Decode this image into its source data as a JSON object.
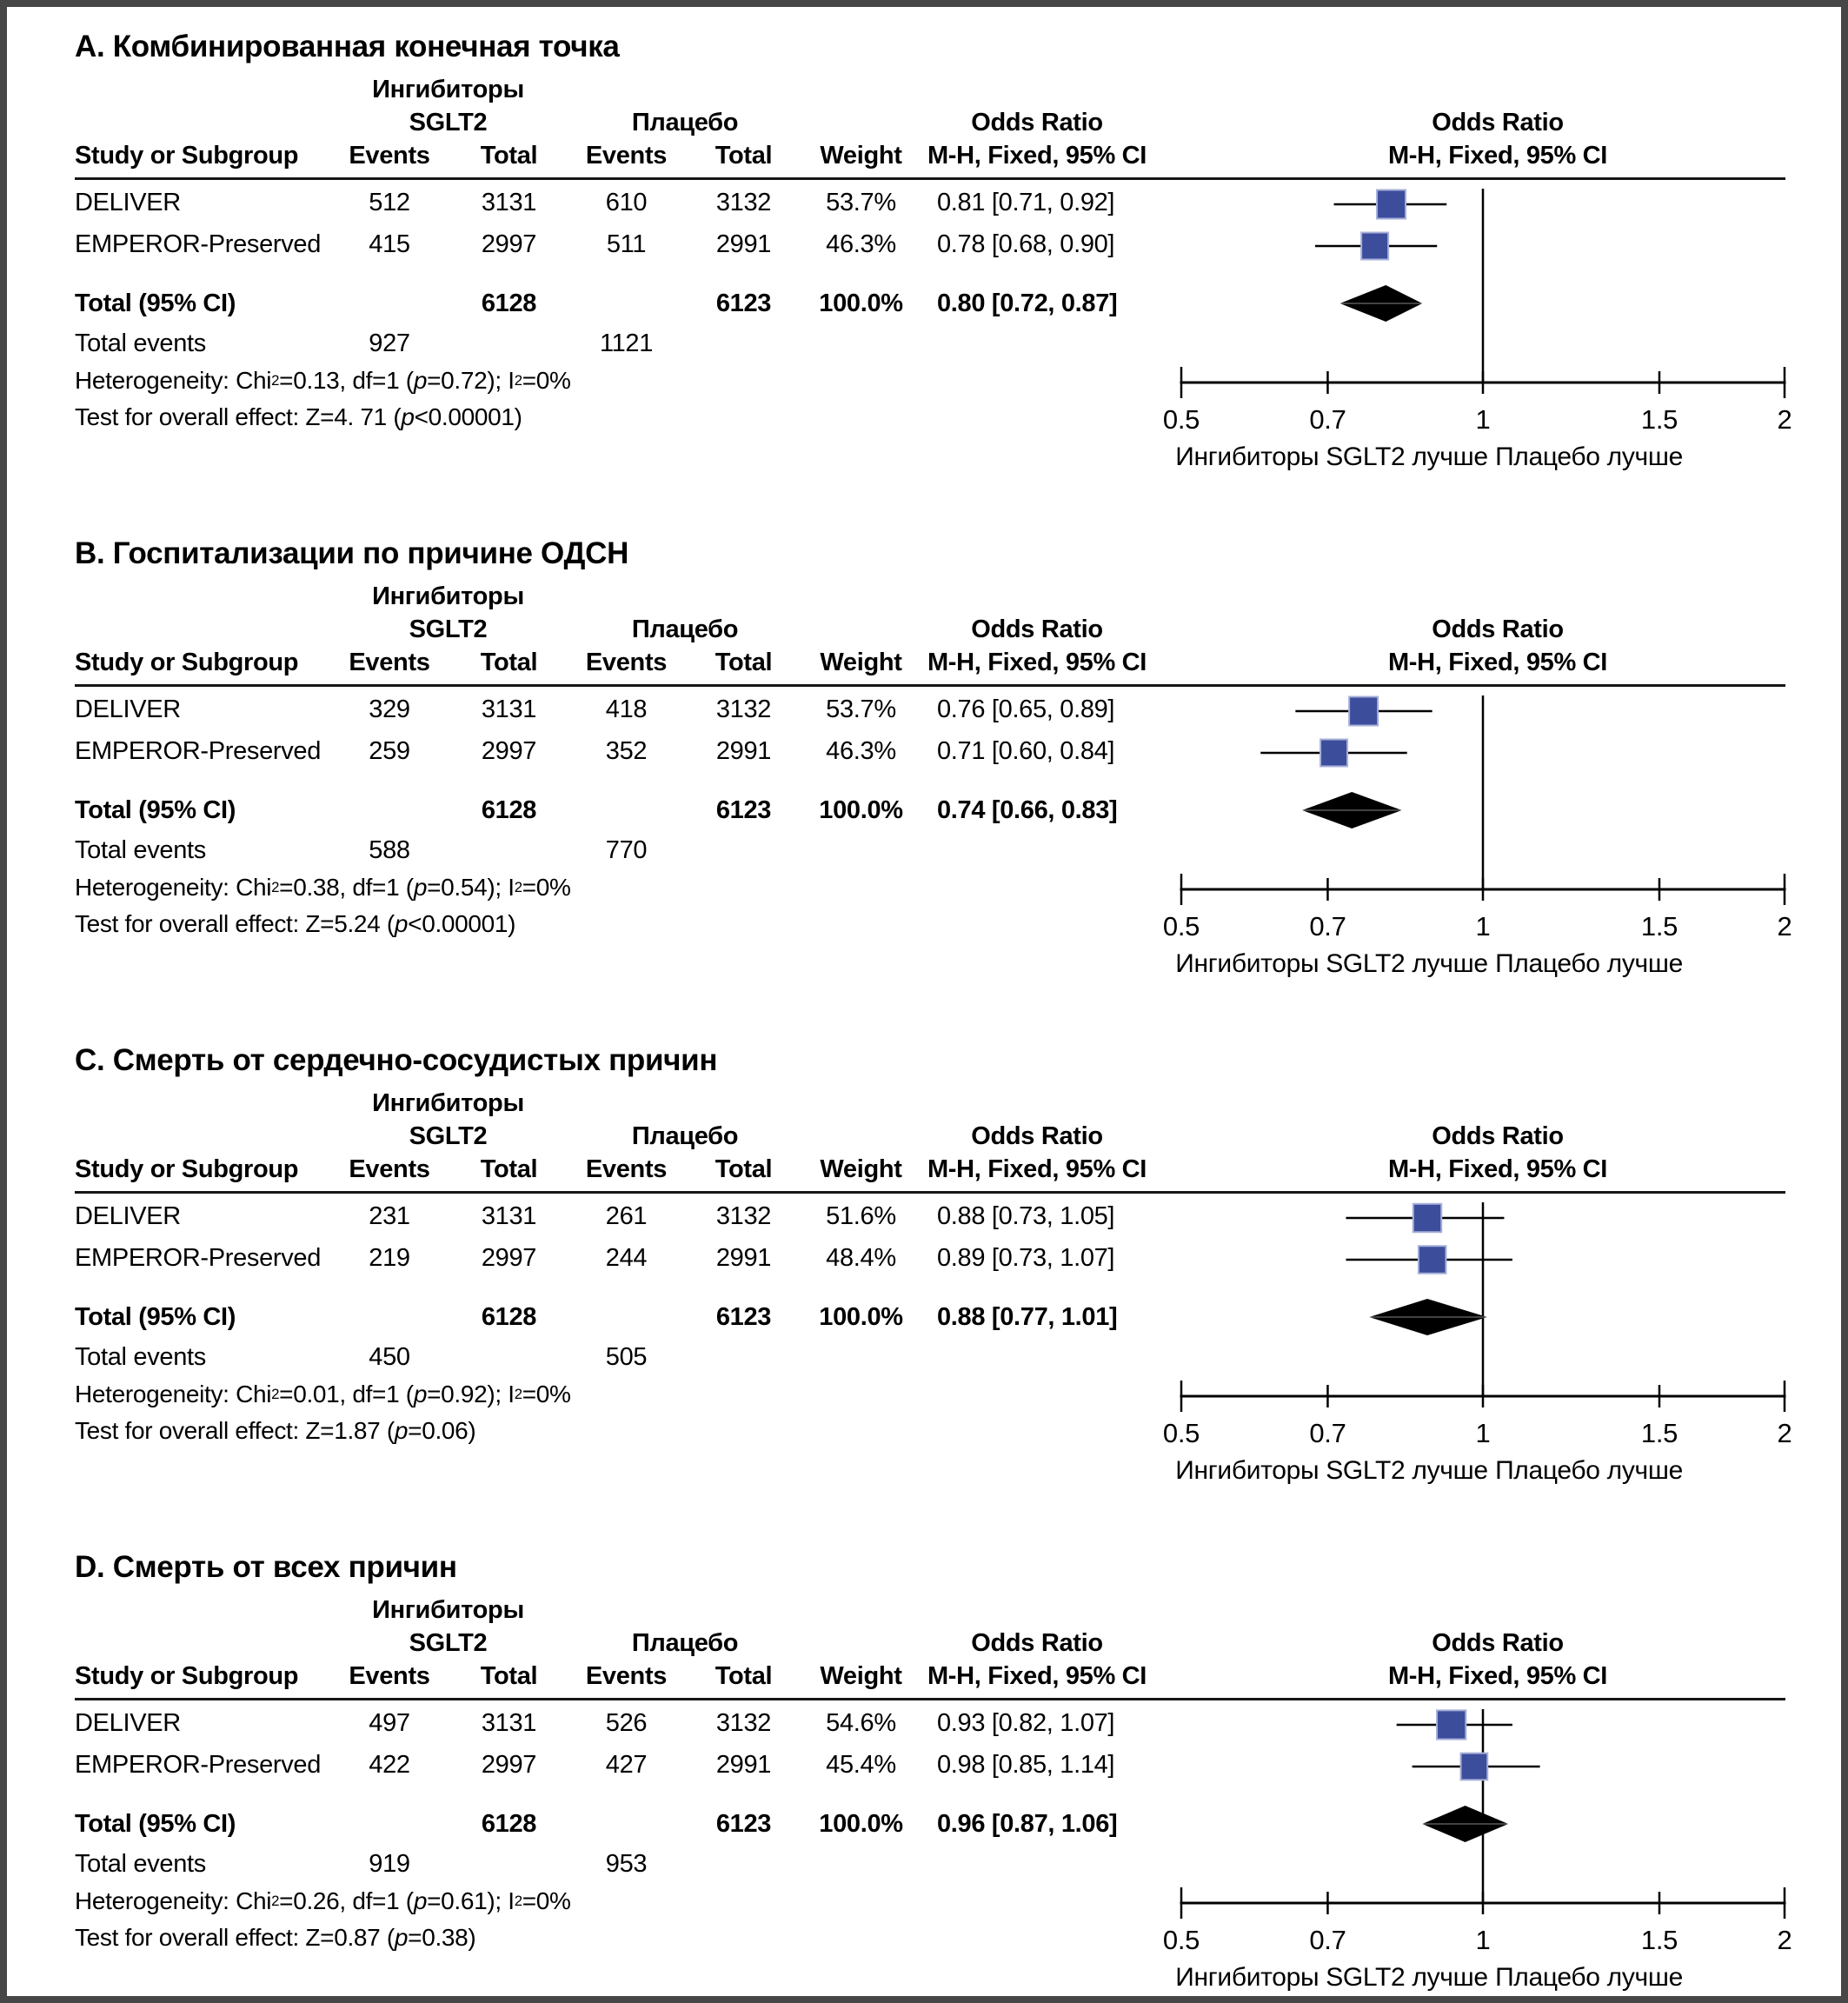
{
  "frame": {
    "border_color": "#474747",
    "background": "#ffffff"
  },
  "chart_data": {
    "type": "forest",
    "x_scale": "log",
    "x_range": [
      0.5,
      2
    ],
    "x_ticks": [
      "0.5",
      "0.7",
      "1",
      "1.5",
      "2"
    ],
    "marker_color": "#3c4d9c",
    "marker_edge_color": "#a7b0d8",
    "diamond_color": "#000000",
    "footer_left": "Ингибиторы SGLT2 лучше",
    "footer_right": "Плацебо лучше",
    "total_label": "Total (95% CI)",
    "total_events_label": "Total events",
    "columns": {
      "study": "Study or Subgroup",
      "group1_line1": "Ингибиторы",
      "group1_line2": "SGLT2",
      "group2": "Плацебо",
      "events": "Events",
      "total": "Total",
      "weight": "Weight",
      "or_title": "Odds Ratio",
      "or_sub": "M-H, Fixed, 95% CI"
    },
    "panels": [
      {
        "title": "А. Комбинированная конечная точка",
        "studies": [
          {
            "name": "DELIVER",
            "e1": "512",
            "t1": "3131",
            "e2": "610",
            "t2": "3132",
            "weight": "53.7%",
            "ci_text": "0.81 [0.71, 0.92]",
            "or": 0.81,
            "lo": 0.71,
            "hi": 0.92,
            "w": 53.7
          },
          {
            "name": "EMPEROR-Preserved",
            "e1": "415",
            "t1": "2997",
            "e2": "511",
            "t2": "2991",
            "weight": "46.3%",
            "ci_text": "0.78 [0.68, 0.90]",
            "or": 0.78,
            "lo": 0.68,
            "hi": 0.9,
            "w": 46.3
          }
        ],
        "total": {
          "t1": "6128",
          "t2": "6123",
          "weight": "100.0%",
          "ci_text": "0.80 [0.72, 0.87]",
          "or": 0.8,
          "lo": 0.72,
          "hi": 0.87
        },
        "total_events": {
          "e1": "927",
          "e2": "1121"
        },
        "heterogeneity_parts": [
          {
            "t": "Heterogeneity: Chi"
          },
          {
            "t": "2",
            "sup": true
          },
          {
            "t": "=0.13, df=1 ("
          },
          {
            "t": "p",
            "i": true
          },
          {
            "t": "=0.72); I"
          },
          {
            "t": "2",
            "sup": true
          },
          {
            "t": "=0%"
          }
        ],
        "test_parts": [
          {
            "t": "Test for overall effect: Z=4. 71 ("
          },
          {
            "t": "p",
            "i": true
          },
          {
            "t": " <0.00001)"
          }
        ]
      },
      {
        "title": "В. Госпитализации по причине ОДСН",
        "studies": [
          {
            "name": "DELIVER",
            "e1": "329",
            "t1": "3131",
            "e2": "418",
            "t2": "3132",
            "weight": "53.7%",
            "ci_text": "0.76 [0.65, 0.89]",
            "or": 0.76,
            "lo": 0.65,
            "hi": 0.89,
            "w": 53.7
          },
          {
            "name": "EMPEROR-Preserved",
            "e1": "259",
            "t1": "2997",
            "e2": "352",
            "t2": "2991",
            "weight": "46.3%",
            "ci_text": "0.71 [0.60, 0.84]",
            "or": 0.71,
            "lo": 0.6,
            "hi": 0.84,
            "w": 46.3
          }
        ],
        "total": {
          "t1": "6128",
          "t2": "6123",
          "weight": "100.0%",
          "ci_text": "0.74 [0.66, 0.83]",
          "or": 0.74,
          "lo": 0.66,
          "hi": 0.83
        },
        "total_events": {
          "e1": "588",
          "e2": "770"
        },
        "heterogeneity_parts": [
          {
            "t": "Heterogeneity: Chi"
          },
          {
            "t": "2",
            "sup": true
          },
          {
            "t": "=0.38, df=1 ("
          },
          {
            "t": "p",
            "i": true
          },
          {
            "t": "=0.54); I"
          },
          {
            "t": "2",
            "sup": true
          },
          {
            "t": "=0%"
          }
        ],
        "test_parts": [
          {
            "t": "Test for overall effect: Z=5.24 ("
          },
          {
            "t": "p",
            "i": true
          },
          {
            "t": " <0.00001)"
          }
        ]
      },
      {
        "title": "С. Смерть от сердечно-сосудистых причин",
        "studies": [
          {
            "name": "DELIVER",
            "e1": "231",
            "t1": "3131",
            "e2": "261",
            "t2": "3132",
            "weight": "51.6%",
            "ci_text": "0.88 [0.73, 1.05]",
            "or": 0.88,
            "lo": 0.73,
            "hi": 1.05,
            "w": 51.6
          },
          {
            "name": "EMPEROR-Preserved",
            "e1": "219",
            "t1": "2997",
            "e2": "244",
            "t2": "2991",
            "weight": "48.4%",
            "ci_text": "0.89 [0.73, 1.07]",
            "or": 0.89,
            "lo": 0.73,
            "hi": 1.07,
            "w": 48.4
          }
        ],
        "total": {
          "t1": "6128",
          "t2": "6123",
          "weight": "100.0%",
          "ci_text": "0.88 [0.77, 1.01]",
          "or": 0.88,
          "lo": 0.77,
          "hi": 1.01
        },
        "total_events": {
          "e1": "450",
          "e2": "505"
        },
        "heterogeneity_parts": [
          {
            "t": "Heterogeneity: Chi"
          },
          {
            "t": "2",
            "sup": true
          },
          {
            "t": "=0.01, df=1 ("
          },
          {
            "t": "p",
            "i": true
          },
          {
            "t": "=0.92); I"
          },
          {
            "t": "2",
            "sup": true
          },
          {
            "t": "=0%"
          }
        ],
        "test_parts": [
          {
            "t": "Test for overall effect: Z=1.87 ("
          },
          {
            "t": "p",
            "i": true
          },
          {
            "t": "=0.06)"
          }
        ]
      },
      {
        "title": "D. Смерть от всех причин",
        "studies": [
          {
            "name": "DELIVER",
            "e1": "497",
            "t1": "3131",
            "e2": "526",
            "t2": "3132",
            "weight": "54.6%",
            "ci_text": "0.93 [0.82, 1.07]",
            "or": 0.93,
            "lo": 0.82,
            "hi": 1.07,
            "w": 54.6
          },
          {
            "name": "EMPEROR-Preserved",
            "e1": "422",
            "t1": "2997",
            "e2": "427",
            "t2": "2991",
            "weight": "45.4%",
            "ci_text": "0.98 [0.85, 1.14]",
            "or": 0.98,
            "lo": 0.85,
            "hi": 1.14,
            "w": 45.4
          }
        ],
        "total": {
          "t1": "6128",
          "t2": "6123",
          "weight": "100.0%",
          "ci_text": "0.96 [0.87, 1.06]",
          "or": 0.96,
          "lo": 0.87,
          "hi": 1.06
        },
        "total_events": {
          "e1": "919",
          "e2": "953"
        },
        "heterogeneity_parts": [
          {
            "t": "Heterogeneity: Chi"
          },
          {
            "t": "2",
            "sup": true
          },
          {
            "t": "=0.26, df=1 ("
          },
          {
            "t": "p",
            "i": true
          },
          {
            "t": "=0.61); I"
          },
          {
            "t": "2",
            "sup": true
          },
          {
            "t": "=0%"
          }
        ],
        "test_parts": [
          {
            "t": "Test for overall effect: Z=0.87 ("
          },
          {
            "t": "p",
            "i": true
          },
          {
            "t": "=0.38)"
          }
        ]
      }
    ]
  }
}
